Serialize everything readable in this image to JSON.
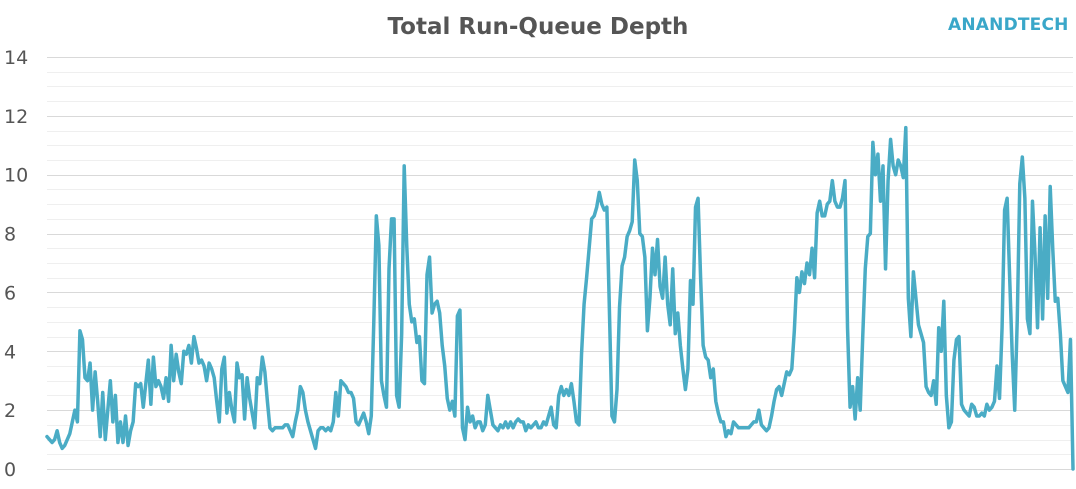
{
  "logo": {
    "text": "ANANDTECH",
    "color": "#3aa7c9"
  },
  "chart_data": {
    "type": "line",
    "title": "Total Run-Queue Depth",
    "xlabel": "",
    "ylabel": "",
    "ylim": [
      0,
      14
    ],
    "yticks": [
      0,
      2,
      4,
      6,
      8,
      10,
      12,
      14
    ],
    "grid": true,
    "legend": "none",
    "line_color": "#4aacc5",
    "series": [
      {
        "values": [
          1.1,
          1.0,
          0.9,
          1.0,
          1.3,
          0.9,
          0.7,
          0.8,
          1.0,
          1.2,
          1.6,
          2.0,
          1.6,
          4.7,
          4.4,
          3.1,
          3.0,
          3.6,
          2.0,
          3.3,
          2.3,
          1.1,
          2.6,
          1.0,
          2.0,
          3.0,
          1.6,
          2.5,
          0.9,
          1.6,
          0.9,
          1.8,
          0.8,
          1.3,
          1.6,
          2.9,
          2.8,
          2.9,
          2.1,
          2.9,
          3.7,
          2.2,
          3.8,
          2.8,
          3.0,
          2.8,
          2.4,
          3.1,
          2.3,
          4.2,
          3.0,
          3.9,
          3.3,
          2.9,
          4.0,
          3.9,
          4.2,
          3.6,
          4.5,
          4.1,
          3.6,
          3.7,
          3.5,
          3.0,
          3.6,
          3.4,
          3.1,
          2.3,
          1.6,
          3.4,
          3.8,
          1.9,
          2.6,
          2.0,
          1.6,
          3.6,
          3.1,
          3.2,
          1.7,
          3.1,
          2.4,
          1.9,
          1.4,
          3.1,
          2.9,
          3.8,
          3.3,
          2.3,
          1.4,
          1.3,
          1.4,
          1.4,
          1.4,
          1.4,
          1.5,
          1.5,
          1.3,
          1.1,
          1.6,
          2.0,
          2.8,
          2.6,
          2.0,
          1.6,
          1.3,
          1.0,
          0.7,
          1.3,
          1.4,
          1.4,
          1.3,
          1.4,
          1.3,
          1.6,
          2.6,
          1.8,
          3.0,
          2.9,
          2.8,
          2.6,
          2.6,
          2.4,
          1.6,
          1.5,
          1.7,
          1.9,
          1.6,
          1.2,
          1.8,
          5.0,
          8.6,
          7.6,
          3.0,
          2.5,
          2.1,
          6.8,
          8.5,
          8.5,
          2.5,
          2.1,
          4.6,
          10.3,
          7.6,
          5.6,
          5.0,
          5.1,
          4.3,
          4.5,
          3.0,
          2.9,
          6.6,
          7.2,
          5.3,
          5.6,
          5.7,
          5.3,
          4.2,
          3.5,
          2.4,
          2.0,
          2.3,
          1.8,
          5.2,
          5.4,
          1.4,
          1.0,
          2.1,
          1.6,
          1.8,
          1.4,
          1.6,
          1.6,
          1.3,
          1.5,
          2.5,
          2.0,
          1.5,
          1.4,
          1.3,
          1.5,
          1.4,
          1.6,
          1.4,
          1.6,
          1.4,
          1.6,
          1.7,
          1.6,
          1.6,
          1.3,
          1.5,
          1.4,
          1.5,
          1.6,
          1.4,
          1.4,
          1.6,
          1.5,
          1.8,
          2.1,
          1.5,
          1.4,
          2.5,
          2.8,
          2.5,
          2.7,
          2.5,
          2.9,
          2.3,
          1.6,
          1.5,
          3.9,
          5.6,
          6.5,
          7.5,
          8.5,
          8.6,
          8.9,
          9.4,
          9.0,
          8.8,
          8.9,
          5.4,
          1.8,
          1.6,
          2.7,
          5.5,
          6.9,
          7.2,
          7.9,
          8.1,
          8.4,
          10.5,
          9.8,
          8.0,
          7.9,
          7.2,
          4.7,
          5.8,
          7.5,
          6.6,
          7.8,
          6.2,
          5.8,
          7.2,
          5.6,
          4.9,
          6.8,
          4.6,
          5.3,
          4.2,
          3.4,
          2.7,
          3.4,
          6.4,
          5.6,
          8.9,
          9.2,
          6.5,
          4.2,
          3.8,
          3.7,
          3.1,
          3.4,
          2.3,
          1.9,
          1.6,
          1.6,
          1.1,
          1.3,
          1.2,
          1.6,
          1.5,
          1.4,
          1.4,
          1.4,
          1.4,
          1.4,
          1.5,
          1.6,
          1.6,
          2.0,
          1.5,
          1.4,
          1.3,
          1.4,
          1.8,
          2.3,
          2.7,
          2.8,
          2.5,
          2.9,
          3.3,
          3.2,
          3.4,
          4.7,
          6.5,
          6.0,
          6.7,
          6.3,
          7.0,
          6.6,
          7.5,
          6.5,
          8.7,
          9.1,
          8.6,
          8.6,
          9.0,
          9.1,
          9.8,
          9.1,
          8.9,
          8.9,
          9.2,
          9.8,
          4.8,
          2.1,
          2.8,
          1.7,
          3.1,
          2.0,
          4.5,
          6.8,
          7.9,
          8.0,
          11.1,
          10.0,
          10.7,
          9.1,
          10.3,
          6.8,
          9.8,
          11.2,
          10.3,
          10.0,
          10.5,
          10.3,
          9.9,
          11.6,
          5.8,
          4.5,
          6.7,
          5.8,
          4.9,
          4.6,
          4.3,
          2.8,
          2.6,
          2.5,
          3.0,
          2.2,
          4.8,
          4.0,
          5.7,
          2.5,
          1.4,
          1.6,
          3.7,
          4.4,
          4.5,
          2.2,
          2.0,
          1.9,
          1.8,
          2.2,
          2.1,
          1.8,
          1.8,
          1.9,
          1.8,
          2.2,
          2.0,
          2.1,
          2.3,
          3.5,
          2.4,
          4.8,
          8.8,
          9.2,
          6.5,
          3.9,
          2.0,
          5.1,
          9.7,
          10.6,
          9.2,
          5.1,
          4.6,
          9.1,
          7.3,
          4.8,
          8.2,
          5.1,
          8.6,
          5.8,
          9.6,
          7.5,
          5.7,
          5.8,
          4.6,
          3.0,
          2.8,
          2.6,
          4.4,
          0.0
        ]
      }
    ]
  }
}
